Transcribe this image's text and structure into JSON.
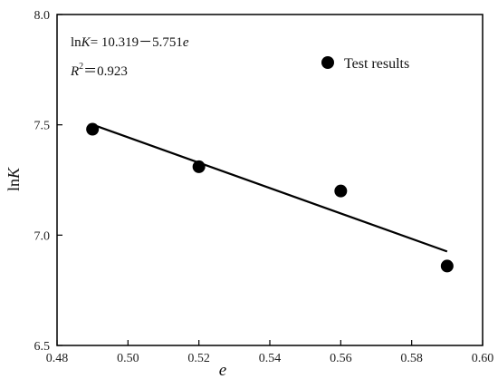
{
  "chart_data": {
    "type": "scatter",
    "xlabel": "e",
    "ylabel": "lnK",
    "xlim": [
      0.48,
      0.6
    ],
    "ylim": [
      6.5,
      8.0
    ],
    "xticks": [
      "0.48",
      "0.50",
      "0.52",
      "0.54",
      "0.56",
      "0.58",
      "0.60"
    ],
    "yticks": [
      "6.5",
      "7.0",
      "7.5",
      "8.0"
    ],
    "grid": false,
    "legend_position": "top-right",
    "series": [
      {
        "name": "Test results",
        "x": [
          0.49,
          0.52,
          0.56,
          0.59
        ],
        "y": [
          7.48,
          7.31,
          7.2,
          6.86
        ]
      }
    ],
    "fit_line": {
      "intercept": 10.319,
      "slope": -5.751,
      "x_range": [
        0.49,
        0.59
      ]
    },
    "annotations": {
      "equation_prefix": "ln",
      "equation_k": "K",
      "equation_rest": "= 10.319－5.751",
      "equation_var": "e",
      "r2_symbol": "R",
      "r2_power": "2",
      "r2_value": "＝0.923"
    }
  },
  "colors": {
    "marker": "#000000",
    "line": "#000000",
    "axis": "#000000"
  }
}
